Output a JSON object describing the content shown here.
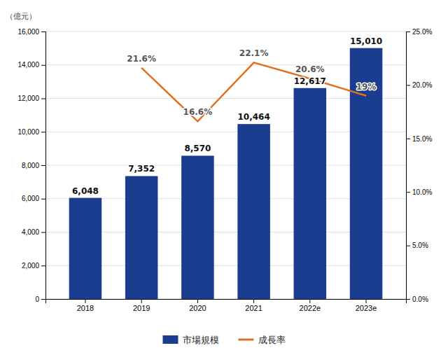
{
  "chart_data": {
    "type": "bar",
    "categories": [
      "2018",
      "2019",
      "2020",
      "2021",
      "2022e",
      "2023e"
    ],
    "ylabel": "（億元）",
    "ylim": [
      0,
      16000
    ],
    "yticks": [
      0,
      {
        "value": 2000,
        "label": "2,000"
      },
      {
        "value": 4000,
        "label": "4,000"
      },
      {
        "value": 6000,
        "label": "6,000"
      },
      {
        "value": 8000,
        "label": "8,000"
      },
      {
        "value": 10000,
        "label": "10,000"
      },
      {
        "value": 12000,
        "label": "12,000"
      },
      {
        "value": 14000,
        "label": "14,000"
      },
      {
        "value": 16000,
        "label": "16,000"
      }
    ],
    "y2lim": [
      0,
      25.0
    ],
    "y2ticks": [
      {
        "value": 0.0,
        "label": "0.0%"
      },
      {
        "value": 5.0,
        "label": "5.0%"
      },
      {
        "value": 10.0,
        "label": "10.0%"
      },
      {
        "value": 15.0,
        "label": "15.0%"
      },
      {
        "value": 20.0,
        "label": "20.0%"
      },
      {
        "value": 25.0,
        "label": "25.0%"
      }
    ],
    "grid": true,
    "legend": "bottom",
    "data_labels": true,
    "series": [
      {
        "name": "市場規模",
        "type": "bar",
        "color": "#1b3d8f",
        "values": [
          6048,
          7352,
          8570,
          10464,
          12617,
          15010
        ],
        "value_labels": [
          "6,048",
          "7,352",
          "8,570",
          "10,464",
          "12,617",
          "15,010"
        ]
      },
      {
        "name": "成長率",
        "type": "line",
        "axis": "y2",
        "color": "#e07020",
        "values": [
          null,
          21.6,
          16.6,
          22.1,
          20.6,
          19.0
        ],
        "value_labels": [
          null,
          "21.6%",
          "16.6%",
          "22.1%",
          "20.6%",
          "19%"
        ]
      }
    ]
  }
}
